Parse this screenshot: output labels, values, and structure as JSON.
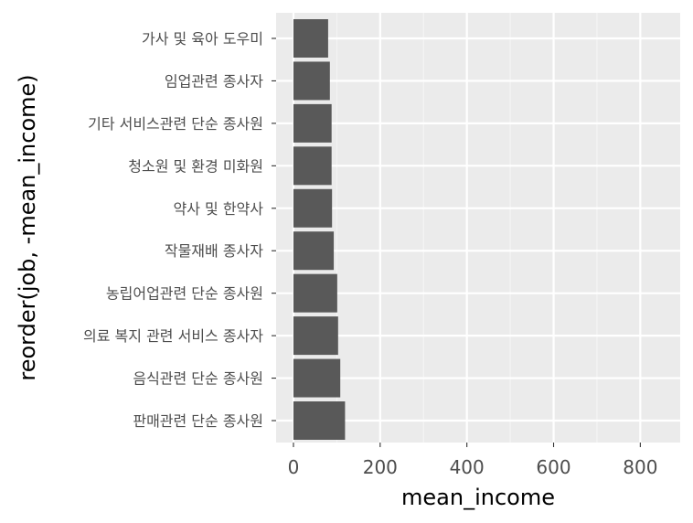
{
  "chart_data": {
    "type": "bar",
    "orientation": "horizontal",
    "xlabel": "mean_income",
    "ylabel": "reorder(job, -mean_income)",
    "xlim": [
      -40,
      892
    ],
    "x_ticks": [
      0,
      200,
      400,
      600,
      800
    ],
    "grid": true,
    "categories": [
      "가사 및 육아 도우미",
      "임업관련 종사자",
      "기타 서비스관련 단순 종사원",
      "청소원 및 환경 미화원",
      "약사 및 한약사",
      "작물재배 종사자",
      "농립어업관련 단순 종사원",
      "의료 복지 관련 서비스 종사자",
      "음식관련 단순 종사원",
      "판매관련 단순 종사원"
    ],
    "values": [
      80,
      84,
      88,
      88,
      89,
      93,
      101,
      103,
      108,
      119
    ],
    "colors": {
      "bar": "#595959",
      "panel": "#ebebeb",
      "grid_major": "#ffffff",
      "grid_minor": "#f5f5f5",
      "tick_text": "#4d4d4d",
      "title_text": "#000000"
    }
  }
}
